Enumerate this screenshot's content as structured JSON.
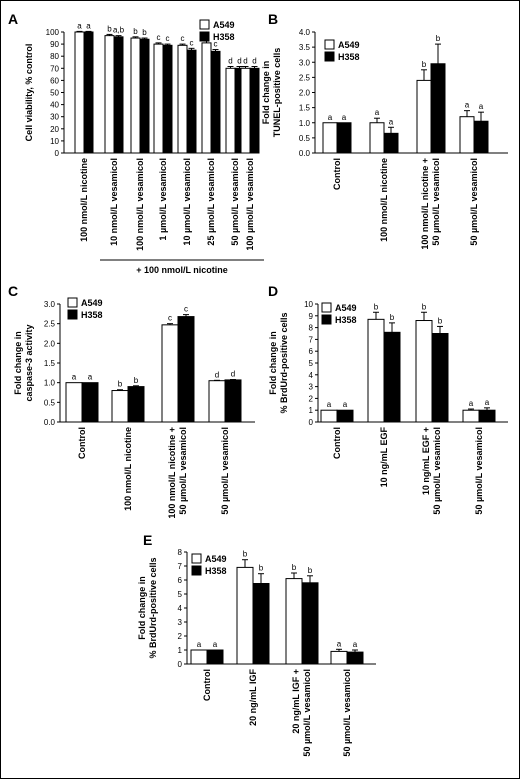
{
  "chart_data": [
    {
      "panel": "A",
      "type": "bar",
      "ylabel": "Cell viability, % control",
      "ylim": [
        0,
        100
      ],
      "yticks": [
        0,
        10,
        20,
        30,
        40,
        50,
        60,
        70,
        80,
        90,
        100
      ],
      "categories": [
        "100 nmol/L nicotine",
        "10 nmol/L vesamicol",
        "100 nmol/L vesamicol",
        "1 µmol/L vesamicol",
        "10 µmol/L vesamicol",
        "25 µmol/L vesamicol",
        "50 µmol/L vesamicol",
        "100 µmol/L vesamicol"
      ],
      "group_label": "+ 100 nmol/L nicotine",
      "series": [
        {
          "name": "A549",
          "values": [
            100,
            97,
            95,
            90,
            89,
            91,
            70,
            70
          ],
          "errors": [
            0.5,
            1,
            1,
            1,
            1,
            1.5,
            1.5,
            1.5
          ],
          "letters": [
            "a",
            "b",
            "b",
            "c",
            "c",
            "c",
            "d",
            "d"
          ]
        },
        {
          "name": "H358",
          "values": [
            100,
            96,
            94,
            89,
            85,
            84,
            70,
            70
          ],
          "errors": [
            0.5,
            1,
            1,
            1,
            1.5,
            1.5,
            1.5,
            1.5
          ],
          "letters": [
            "a",
            "a,b",
            "b",
            "c",
            "c",
            "c",
            "d",
            "d"
          ]
        }
      ],
      "legend": "top-right",
      "grid": false
    },
    {
      "panel": "B",
      "type": "bar",
      "ylabel": "Fold change in TUNEL-positive cells",
      "ylim": [
        0,
        4.0
      ],
      "yticks": [
        0,
        0.5,
        1.0,
        1.5,
        2.0,
        2.5,
        3.0,
        3.5,
        4.0
      ],
      "categories": [
        "Control",
        "100 nmol/L nicotine",
        "100 nmol/L nicotine + 50 µmol/L vesamicol",
        "50 µmol/L vesamicol"
      ],
      "series": [
        {
          "name": "A549",
          "values": [
            1.0,
            1.0,
            2.4,
            1.2
          ],
          "errors": [
            0,
            0.15,
            0.35,
            0.2
          ],
          "letters": [
            "a",
            "a",
            "b",
            "a"
          ]
        },
        {
          "name": "H358",
          "values": [
            1.0,
            0.65,
            2.95,
            1.05
          ],
          "errors": [
            0,
            0.2,
            0.65,
            0.3
          ],
          "letters": [
            "a",
            "a",
            "b",
            "a"
          ]
        }
      ],
      "legend": "top-left",
      "grid": false
    },
    {
      "panel": "C",
      "type": "bar",
      "ylabel": "Fold change in caspase-3 activity",
      "ylim": [
        0,
        3.0
      ],
      "yticks": [
        0,
        0.5,
        1.0,
        1.5,
        2.0,
        2.5,
        3.0
      ],
      "categories": [
        "Control",
        "100 nmol/L nicotine",
        "100 nmol/L nicotine + 50 µmol/L vesamicol",
        "50 µmol/L vesamicol"
      ],
      "series": [
        {
          "name": "A549",
          "values": [
            1.0,
            0.8,
            2.47,
            1.05
          ],
          "errors": [
            0,
            0.02,
            0.03,
            0.01
          ],
          "letters": [
            "a",
            "b",
            "c",
            "d"
          ]
        },
        {
          "name": "H358",
          "values": [
            1.0,
            0.9,
            2.68,
            1.07
          ],
          "errors": [
            0,
            0.02,
            0.05,
            0.01
          ],
          "letters": [
            "a",
            "b",
            "c",
            "d"
          ]
        }
      ],
      "legend": "top-left",
      "grid": false
    },
    {
      "panel": "D",
      "type": "bar",
      "ylabel": "Fold change in % BrdUrd-positive cells",
      "ylim": [
        0,
        10
      ],
      "yticks": [
        0,
        1,
        2,
        3,
        4,
        5,
        6,
        7,
        8,
        9,
        10
      ],
      "categories": [
        "Control",
        "10 ng/mL EGF",
        "10 ng/mL EGF + 50 µmol/L vesamicol",
        "50 µmol/L vesamicol"
      ],
      "series": [
        {
          "name": "A549",
          "values": [
            1.0,
            8.7,
            8.6,
            1.0
          ],
          "errors": [
            0,
            0.6,
            0.7,
            0.1
          ],
          "letters": [
            "a",
            "b",
            "b",
            "a"
          ]
        },
        {
          "name": "H358",
          "values": [
            1.0,
            7.6,
            7.5,
            1.0
          ],
          "errors": [
            0,
            0.8,
            0.6,
            0.2
          ],
          "letters": [
            "a",
            "b",
            "b",
            "a"
          ]
        }
      ],
      "legend": "top-left",
      "grid": false
    },
    {
      "panel": "E",
      "type": "bar",
      "ylabel": "Fold change in % BrdUrd-positive cells",
      "ylim": [
        0,
        8
      ],
      "yticks": [
        0,
        1,
        2,
        3,
        4,
        5,
        6,
        7,
        8
      ],
      "categories": [
        "Control",
        "20 ng/mL IGF",
        "20 ng/mL IGF + 50 µmol/L vesamicol",
        "50 µmol/L vesamicol"
      ],
      "series": [
        {
          "name": "A549",
          "values": [
            1.0,
            6.9,
            6.1,
            0.9
          ],
          "errors": [
            0,
            0.55,
            0.4,
            0.15
          ],
          "letters": [
            "a",
            "b",
            "b",
            "a"
          ]
        },
        {
          "name": "H358",
          "values": [
            1.0,
            5.75,
            5.8,
            0.85
          ],
          "errors": [
            0,
            0.7,
            0.5,
            0.15
          ],
          "letters": [
            "a",
            "b",
            "b",
            "a"
          ]
        }
      ],
      "legend": "top-left",
      "grid": false
    }
  ]
}
